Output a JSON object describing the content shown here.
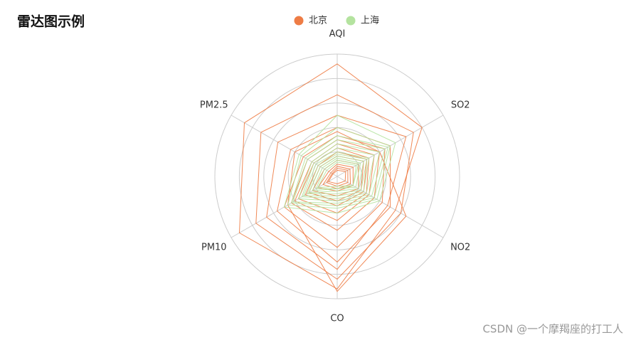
{
  "chart_data": {
    "type": "radar",
    "title": "雷达图示例",
    "indicators": [
      {
        "name": "AQI",
        "max": 300
      },
      {
        "name": "PM2.5",
        "max": 250
      },
      {
        "name": "PM10",
        "max": 300
      },
      {
        "name": "CO",
        "max": 5
      },
      {
        "name": "NO2",
        "max": 200
      },
      {
        "name": "SO2",
        "max": 100
      }
    ],
    "series": [
      {
        "name": "北京",
        "color": "#ee7c45",
        "values": [
          [
            276,
            219,
            277,
            4.6,
            110,
            80
          ],
          [
            200,
            180,
            230,
            4.2,
            120,
            72
          ],
          [
            150,
            140,
            200,
            3.8,
            95,
            65
          ],
          [
            120,
            110,
            170,
            3.5,
            100,
            50
          ],
          [
            100,
            80,
            150,
            2.9,
            85,
            45
          ],
          [
            90,
            70,
            130,
            2.2,
            70,
            40
          ],
          [
            80,
            60,
            120,
            1.8,
            60,
            35
          ],
          [
            70,
            55,
            110,
            1.5,
            55,
            30
          ],
          [
            60,
            45,
            90,
            1.2,
            50,
            28
          ],
          [
            50,
            40,
            80,
            1.0,
            45,
            25
          ],
          [
            40,
            30,
            70,
            0.8,
            40,
            20
          ],
          [
            30,
            20,
            55,
            0.6,
            30,
            15
          ],
          [
            25,
            15,
            40,
            0.5,
            25,
            12
          ],
          [
            20,
            12,
            30,
            0.4,
            20,
            10
          ],
          [
            15,
            10,
            25,
            0.3,
            15,
            8
          ],
          [
            110,
            100,
            140,
            4.7,
            130,
            40
          ]
        ]
      },
      {
        "name": "上海",
        "color": "#b4e39f",
        "values": [
          [
            150,
            90,
            150,
            1.5,
            80,
            55
          ],
          [
            120,
            85,
            140,
            1.3,
            75,
            50
          ],
          [
            100,
            75,
            130,
            1.2,
            70,
            48
          ],
          [
            90,
            70,
            125,
            1.1,
            65,
            45
          ],
          [
            80,
            60,
            110,
            1.0,
            60,
            40
          ],
          [
            70,
            55,
            100,
            0.9,
            55,
            35
          ],
          [
            60,
            50,
            95,
            0.8,
            50,
            30
          ],
          [
            55,
            45,
            85,
            0.7,
            45,
            28
          ],
          [
            50,
            40,
            80,
            0.6,
            40,
            25
          ],
          [
            45,
            35,
            70,
            0.5,
            35,
            22
          ],
          [
            40,
            30,
            60,
            0.5,
            30,
            20
          ],
          [
            35,
            25,
            55,
            0.4,
            30,
            18
          ]
        ]
      }
    ],
    "split_number": 5,
    "watermark": "CSDN @一个摩羯座的打工人"
  }
}
